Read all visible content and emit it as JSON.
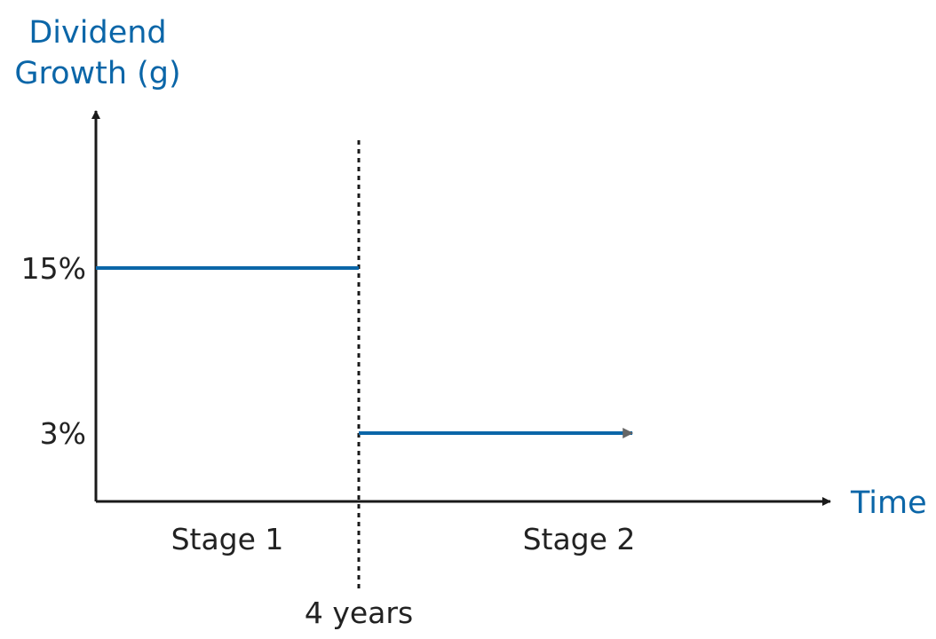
{
  "chart_data": {
    "type": "line",
    "ylabel_lines": [
      "Dividend",
      "Growth (g)"
    ],
    "xlabel": "Time",
    "y_ticks": [
      "15%",
      "3%"
    ],
    "series": [
      {
        "x": [
          0,
          4,
          4,
          8
        ],
        "y": [
          15,
          15,
          3,
          3
        ]
      }
    ],
    "marker": {
      "label": "4 years",
      "x": 4,
      "style": "dotted"
    },
    "regions": [
      "Stage 1",
      "Stage 2"
    ],
    "grid": false,
    "colors": {
      "series": "#0b66a8",
      "axis": "#1a1a1a",
      "label_accent": "#0b66a8",
      "arrow_end": "#666666",
      "text": "#222222"
    }
  }
}
